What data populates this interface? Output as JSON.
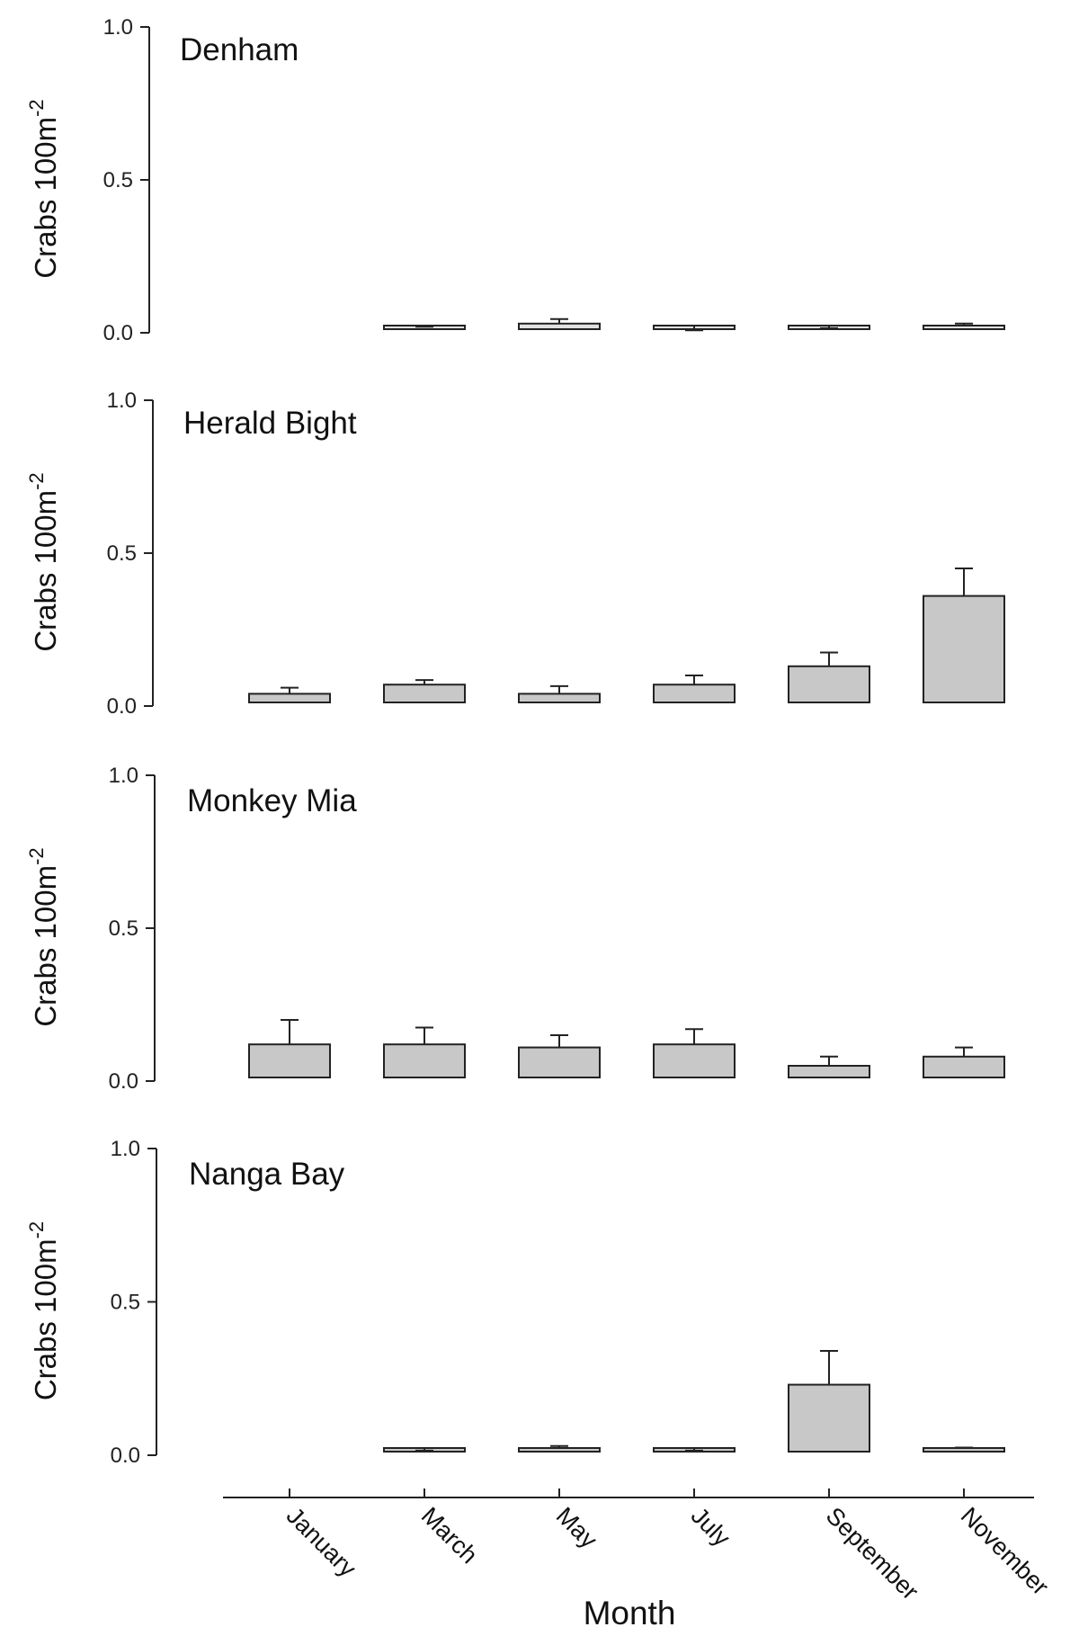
{
  "chart_data": [
    {
      "type": "bar",
      "title": "Denham",
      "ylabel": "Crabs 100m",
      "ylabel_sup": "-2",
      "ylim": [
        0,
        1.0
      ],
      "yticks": [
        "0.0",
        "0.5",
        "1.0"
      ],
      "categories": [
        "January",
        "March",
        "May",
        "July",
        "September",
        "November"
      ],
      "values": [
        null,
        0.01,
        0.03,
        0.005,
        0.01,
        0.02
      ],
      "errors": [
        null,
        0.01,
        0.015,
        0.003,
        0.005,
        0.01
      ],
      "bar_color": "#e0e0e0"
    },
    {
      "type": "bar",
      "title": "Herald Bight",
      "ylabel": "Crabs 100m",
      "ylabel_sup": "-2",
      "ylim": [
        0,
        1.0
      ],
      "yticks": [
        "0.0",
        "0.5",
        "1.0"
      ],
      "categories": [
        "January",
        "March",
        "May",
        "July",
        "September",
        "November"
      ],
      "values": [
        0.04,
        0.07,
        0.04,
        0.07,
        0.13,
        0.36
      ],
      "errors": [
        0.02,
        0.015,
        0.025,
        0.03,
        0.045,
        0.09
      ],
      "bar_color": "#c8c8c8"
    },
    {
      "type": "bar",
      "title": "Monkey Mia",
      "ylabel": "Crabs 100m",
      "ylabel_sup": "-2",
      "ylim": [
        0,
        1.0
      ],
      "yticks": [
        "0.0",
        "0.5",
        "1.0"
      ],
      "categories": [
        "January",
        "March",
        "May",
        "July",
        "September",
        "November"
      ],
      "values": [
        0.12,
        0.12,
        0.11,
        0.12,
        0.05,
        0.08
      ],
      "errors": [
        0.08,
        0.055,
        0.04,
        0.05,
        0.03,
        0.03
      ],
      "bar_color": "#c8c8c8"
    },
    {
      "type": "bar",
      "title": "Nanga Bay",
      "ylabel": "Crabs 100m",
      "ylabel_sup": "-2",
      "ylim": [
        0,
        1.0
      ],
      "yticks": [
        "0.0",
        "0.5",
        "1.0"
      ],
      "categories": [
        "January",
        "March",
        "May",
        "July",
        "September",
        "November"
      ],
      "values": [
        null,
        0.01,
        0.02,
        0.01,
        0.23,
        0.02
      ],
      "errors": [
        null,
        0.005,
        0.01,
        0.005,
        0.11,
        0.005
      ],
      "bar_color": "#c8c8c8"
    }
  ],
  "x_axis": {
    "label": "Month",
    "ticks": [
      "January",
      "March",
      "May",
      "July",
      "September",
      "November"
    ]
  },
  "colors": {
    "axis": "#222222",
    "text": "#111111"
  }
}
